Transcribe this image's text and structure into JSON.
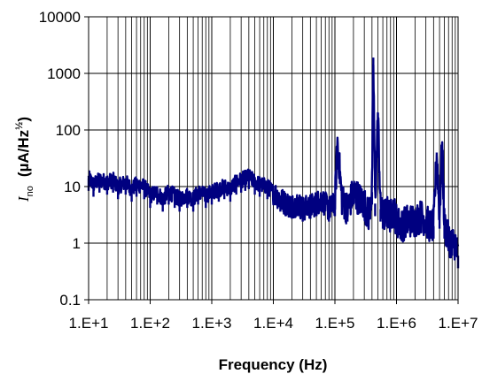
{
  "chart_data": {
    "type": "line",
    "xlabel": "Frequency (Hz)",
    "ylabel": {
      "symbol": "I",
      "subscript": "no",
      "unit_open": "(µA/Hz",
      "unit_sup": "½",
      "unit_close": ")"
    },
    "x_scale": "log",
    "y_scale": "log",
    "xlim": [
      10,
      10000000
    ],
    "ylim": [
      0.1,
      10000
    ],
    "grid": true,
    "legend": "none",
    "line_color": "#000080",
    "x_ticks": [
      {
        "value": 10,
        "label": "1.E+1"
      },
      {
        "value": 100,
        "label": "1.E+2"
      },
      {
        "value": 1000,
        "label": "1.E+3"
      },
      {
        "value": 10000,
        "label": "1.E+4"
      },
      {
        "value": 100000,
        "label": "1.E+5"
      },
      {
        "value": 1000000,
        "label": "1.E+6"
      },
      {
        "value": 10000000,
        "label": "1.E+7"
      }
    ],
    "y_ticks": [
      {
        "value": 0.1,
        "label": "0.1"
      },
      {
        "value": 1,
        "label": "1"
      },
      {
        "value": 10,
        "label": "10"
      },
      {
        "value": 100,
        "label": "100"
      },
      {
        "value": 1000,
        "label": "1000"
      },
      {
        "value": 10000,
        "label": "10000"
      }
    ],
    "series": [
      {
        "x": [
          10,
          12,
          15,
          20,
          25,
          30,
          40,
          50,
          60,
          80,
          100,
          130,
          160,
          200,
          250,
          300,
          400,
          500,
          600,
          800,
          1000,
          1300,
          1600,
          2000,
          2500,
          3000,
          3500,
          4000,
          5000,
          6000,
          8000,
          10000,
          13000,
          16000,
          20000,
          25000,
          30000,
          40000,
          50000,
          60000,
          80000,
          100000,
          110000,
          130000,
          160000,
          200000,
          250000,
          300000,
          350000,
          400000,
          420000,
          450000,
          500000,
          550000,
          600000,
          700000,
          800000,
          900000,
          1000000,
          1200000,
          1500000,
          2000000,
          2500000,
          3000000,
          3500000,
          4000000,
          4500000,
          5000000,
          5500000,
          6000000,
          7000000,
          8000000,
          9000000,
          10000000
        ],
        "y": [
          14,
          11,
          13,
          12,
          13,
          10,
          12,
          9,
          11,
          10,
          7,
          8,
          6,
          8,
          7,
          6,
          7,
          6,
          8,
          7,
          8,
          9,
          10,
          9,
          12,
          13,
          14,
          15,
          12,
          11,
          10,
          8,
          6,
          5,
          4.5,
          5,
          4,
          4.5,
          5,
          6,
          4,
          5,
          60,
          6,
          4,
          8,
          6,
          5,
          3,
          8,
          1900,
          5,
          200,
          4,
          3,
          3.5,
          3,
          4,
          2.5,
          2,
          2.5,
          2.5,
          3,
          2.5,
          2,
          2,
          40,
          3,
          60,
          2,
          1.2,
          1,
          1,
          0.6
        ]
      }
    ]
  }
}
